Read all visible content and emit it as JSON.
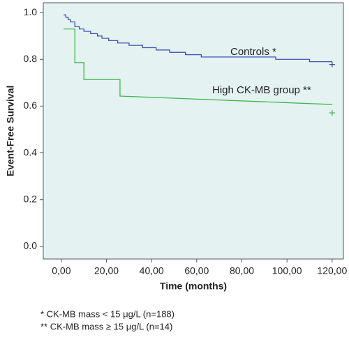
{
  "chart_data": {
    "type": "line",
    "xlabel": "Time (months)",
    "ylabel": "Event-Free Survival",
    "xlim": [
      -8,
      125
    ],
    "ylim": [
      -0.054,
      1.042
    ],
    "xticks": [
      {
        "value": 0,
        "label": "0,00"
      },
      {
        "value": 20,
        "label": "20,00"
      },
      {
        "value": 40,
        "label": "40,00"
      },
      {
        "value": 60,
        "label": "60,00"
      },
      {
        "value": 80,
        "label": "80,00"
      },
      {
        "value": 100,
        "label": "100,00"
      },
      {
        "value": 120,
        "label": "120,00"
      }
    ],
    "yticks": [
      {
        "value": 0,
        "label": "0.0"
      },
      0.2,
      0.4,
      0.6,
      0.8,
      {
        "value": 1,
        "label": "1.0"
      }
    ],
    "background": "#e4f2f2",
    "series": [
      {
        "name": "Controls *",
        "color": "#3a4fb0",
        "x": [
          1,
          2,
          2,
          3,
          3,
          4,
          4,
          6,
          6,
          8,
          8,
          10,
          10,
          13,
          13,
          16,
          16,
          18,
          18,
          21,
          21,
          25,
          25,
          30,
          30,
          36,
          36,
          42,
          42,
          48,
          48,
          55,
          55,
          62,
          62,
          95,
          95,
          110,
          110,
          120
        ],
        "values": [
          0.99,
          0.99,
          0.98,
          0.98,
          0.97,
          0.97,
          0.96,
          0.96,
          0.94,
          0.94,
          0.93,
          0.93,
          0.92,
          0.92,
          0.91,
          0.91,
          0.9,
          0.9,
          0.89,
          0.89,
          0.88,
          0.88,
          0.87,
          0.87,
          0.86,
          0.86,
          0.85,
          0.85,
          0.84,
          0.84,
          0.83,
          0.83,
          0.82,
          0.82,
          0.81,
          0.81,
          0.8,
          0.8,
          0.79,
          0.79
        ],
        "censored": {
          "x": [
            120
          ],
          "values": [
            0.778
          ]
        }
      },
      {
        "name": "High CK-MB group **",
        "color": "#3cb54a",
        "x": [
          1,
          6,
          6,
          10,
          10,
          26,
          26,
          120
        ],
        "values": [
          0.93,
          0.93,
          0.786,
          0.786,
          0.714,
          0.714,
          0.643,
          0.607
        ],
        "censored": {
          "x": [
            120
          ],
          "values": [
            0.571
          ]
        }
      }
    ],
    "footnotes": [
      "*  CK-MB mass < 15 μg/L  (n=188)",
      "**  CK-MB mass ≥ 15 μg/L (n=14)"
    ]
  }
}
